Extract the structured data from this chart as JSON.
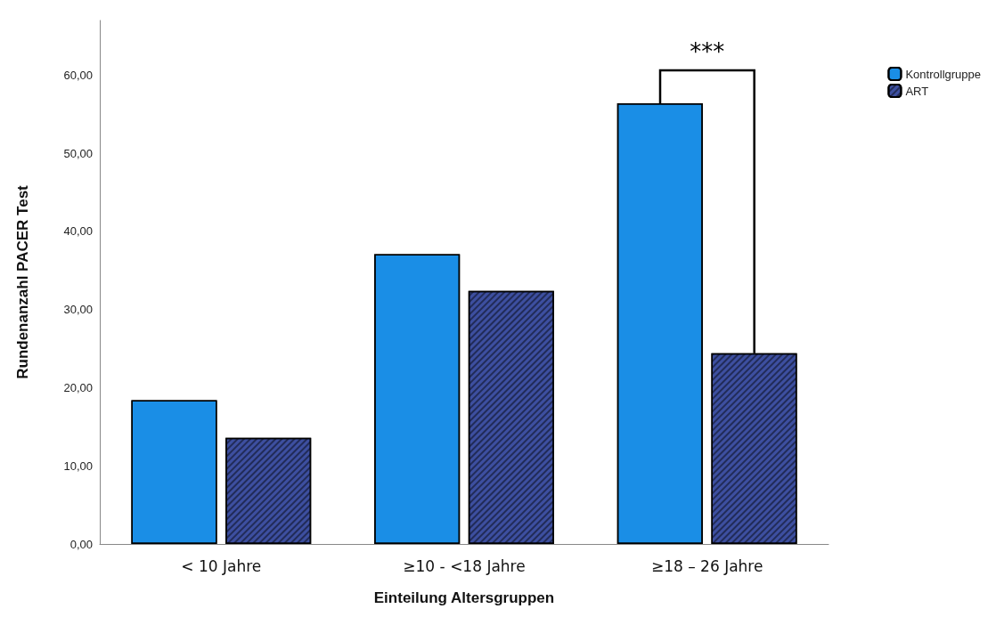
{
  "chart_data": {
    "type": "bar",
    "xlabel": "Einteilung Altersgruppen",
    "ylabel": "Rundenanzahl PACER Test",
    "categories": [
      "< 10 Jahre",
      "≥10 - <18 Jahre",
      "≥18 – 26 Jahre"
    ],
    "series": [
      {
        "name": "Kontrollgruppe",
        "color": "#1a8ee6",
        "values": [
          18.4,
          37.1,
          56.4
        ]
      },
      {
        "name": "ART",
        "color": "#3d4fa0",
        "values": [
          13.6,
          32.4,
          24.4
        ]
      }
    ],
    "ylim": [
      0,
      67
    ],
    "yticks": [
      {
        "value": 0,
        "label": "0,00"
      },
      {
        "value": 10,
        "label": "10,00"
      },
      {
        "value": 20,
        "label": "20,00"
      },
      {
        "value": 30,
        "label": "30,00"
      },
      {
        "value": 40,
        "label": "40,00"
      },
      {
        "value": 50,
        "label": "50,00"
      },
      {
        "value": 60,
        "label": "60,00"
      }
    ],
    "grid": false,
    "legend": "top right",
    "annotations": [
      "***"
    ]
  }
}
